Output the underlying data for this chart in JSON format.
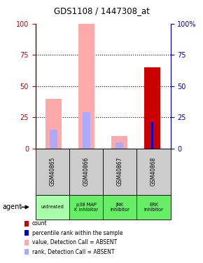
{
  "title": "GDS1108 / 1447308_at",
  "samples": [
    "GSM40865",
    "GSM40866",
    "GSM40867",
    "GSM40868"
  ],
  "agents": [
    "untreated",
    "p38 MAP\nK inhibitor",
    "JNK\ninhibitor",
    "ERK\ninhibitor"
  ],
  "agent_colors": [
    "#aaffaa",
    "#66ee66",
    "#66ee66",
    "#66ee66"
  ],
  "ylim": [
    0,
    100
  ],
  "yticks": [
    0,
    25,
    50,
    75,
    100
  ],
  "absent_value_bars": [
    40,
    100,
    10,
    0
  ],
  "absent_rank_bars": [
    15,
    29,
    5,
    0
  ],
  "count_bars": [
    0,
    0,
    0,
    65
  ],
  "rank_bars": [
    0,
    0,
    0,
    21
  ],
  "colors": {
    "count": "#cc0000",
    "rank": "#0000cc",
    "absent_value": "#ffaaaa",
    "absent_rank": "#aaaaff",
    "sample_bg": "#cccccc",
    "left_axis_color": "#cc0000",
    "right_axis_color": "#0000cc"
  },
  "legend_items": [
    {
      "color": "#cc0000",
      "label": "count"
    },
    {
      "color": "#0000cc",
      "label": "percentile rank within the sample"
    },
    {
      "color": "#ffaaaa",
      "label": "value, Detection Call = ABSENT"
    },
    {
      "color": "#aaaaff",
      "label": "rank, Detection Call = ABSENT"
    }
  ]
}
